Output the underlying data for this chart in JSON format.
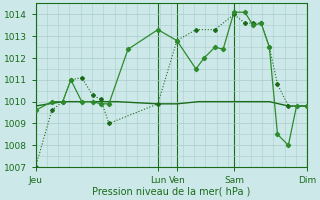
{
  "bg_color": "#cce8e8",
  "grid_color_major": "#aacccc",
  "grid_color_minor": "#c0dcdc",
  "line_dark": "#1a6b1a",
  "line_mid": "#2d8b2d",
  "xlabel": "Pression niveau de la mer( hPa )",
  "ylim": [
    1007,
    1014.5
  ],
  "yticks": [
    1007,
    1008,
    1009,
    1010,
    1011,
    1012,
    1013,
    1014
  ],
  "xtick_labels": [
    "Jeu",
    "Lun",
    "Ven",
    "Sam",
    "Dim"
  ],
  "xtick_positions": [
    0.0,
    0.45,
    0.52,
    0.73,
    1.0
  ],
  "series1_x": [
    0.0,
    0.06,
    0.1,
    0.13,
    0.17,
    0.21,
    0.24,
    0.27,
    0.45,
    0.52,
    0.59,
    0.66,
    0.73,
    0.77,
    0.8,
    0.83,
    0.86,
    0.89,
    0.93,
    1.0
  ],
  "series1_y": [
    1007.0,
    1009.6,
    1010.0,
    1011.0,
    1011.1,
    1010.3,
    1010.1,
    1009.0,
    1009.9,
    1012.8,
    1013.3,
    1013.3,
    1014.0,
    1013.6,
    1013.6,
    1013.6,
    1012.5,
    1010.8,
    1009.8,
    1009.8
  ],
  "series2_x": [
    0.0,
    0.06,
    0.1,
    0.13,
    0.17,
    0.21,
    0.24,
    0.27,
    0.34,
    0.45,
    0.52,
    0.59,
    0.62,
    0.66,
    0.69,
    0.73,
    0.77,
    0.8,
    0.83,
    0.86,
    0.89,
    0.93,
    0.96,
    1.0
  ],
  "series2_y": [
    1009.6,
    1010.0,
    1010.0,
    1011.0,
    1010.0,
    1010.0,
    1009.9,
    1009.9,
    1012.4,
    1013.3,
    1012.8,
    1011.5,
    1012.0,
    1012.5,
    1012.4,
    1014.1,
    1014.1,
    1013.5,
    1013.6,
    1012.5,
    1008.5,
    1008.0,
    1009.8,
    1009.8
  ],
  "series3_x": [
    0.0,
    0.1,
    0.2,
    0.3,
    0.45,
    0.52,
    0.6,
    0.73,
    0.8,
    0.86,
    0.93,
    1.0
  ],
  "series3_y": [
    1009.8,
    1010.0,
    1010.0,
    1010.0,
    1009.9,
    1009.9,
    1010.0,
    1010.0,
    1010.0,
    1010.0,
    1009.8,
    1009.8
  ],
  "vlines_x": [
    0.0,
    0.45,
    0.52,
    0.73,
    1.0
  ]
}
